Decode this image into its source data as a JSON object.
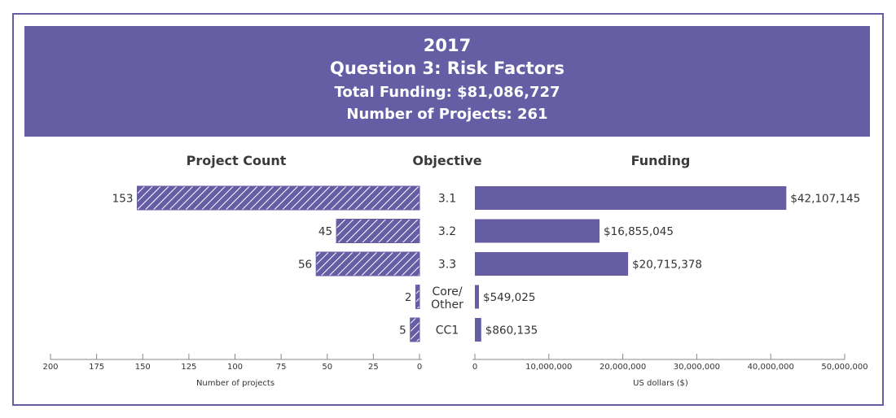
{
  "banner": {
    "year": "2017",
    "title": "Question 3: Risk Factors",
    "total_funding": "Total Funding: $81,086,727",
    "num_projects": "Number of Projects: 261"
  },
  "colors": {
    "bar": "#665ea5",
    "frame": "#665ea5"
  },
  "chart_data": {
    "type": "bar",
    "orientation": "horizontal-butterfly",
    "categories": [
      "3.1",
      "3.2",
      "3.3",
      "Core/\nOther",
      "CC1"
    ],
    "category_header": "Objective",
    "series": [
      {
        "name": "Project Count",
        "values": [
          153,
          45,
          56,
          2,
          5
        ],
        "labels": [
          "153",
          "45",
          "56",
          "2",
          "5"
        ],
        "pattern": "hatched",
        "xlabel": "Number of projects",
        "xlim": [
          0,
          200
        ],
        "ticks": [
          200,
          175,
          150,
          125,
          100,
          75,
          50,
          25,
          0
        ],
        "direction": "leftward"
      },
      {
        "name": "Funding",
        "values": [
          42107145,
          16855045,
          20715378,
          549025,
          860135
        ],
        "labels": [
          "$42,107,145",
          "$16,855,045",
          "$20,715,378",
          "$549,025",
          "$860,135"
        ],
        "pattern": "solid",
        "xlabel": "US dollars ($)",
        "xlim": [
          0,
          50000000
        ],
        "ticks": [
          "0",
          "10,000,000",
          "20,000,000",
          "30,000,000",
          "40,000,000",
          "50,000,000"
        ],
        "tick_values": [
          0,
          10000000,
          20000000,
          30000000,
          40000000,
          50000000
        ],
        "direction": "rightward"
      }
    ],
    "grid": false,
    "legend": "none"
  }
}
